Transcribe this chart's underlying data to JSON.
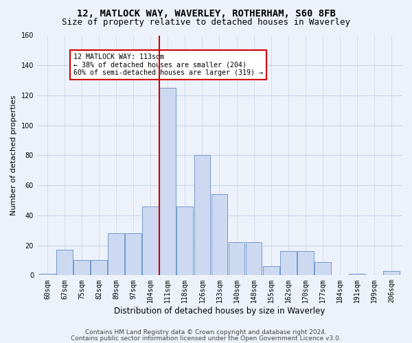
{
  "title1": "12, MATLOCK WAY, WAVERLEY, ROTHERHAM, S60 8FB",
  "title2": "Size of property relative to detached houses in Waverley",
  "xlabel": "Distribution of detached houses by size in Waverley",
  "ylabel": "Number of detached properties",
  "bar_labels": [
    "60sqm",
    "67sqm",
    "75sqm",
    "82sqm",
    "89sqm",
    "97sqm",
    "104sqm",
    "111sqm",
    "118sqm",
    "126sqm",
    "133sqm",
    "140sqm",
    "148sqm",
    "155sqm",
    "162sqm",
    "170sqm",
    "177sqm",
    "184sqm",
    "191sqm",
    "199sqm",
    "206sqm"
  ],
  "bar_heights": [
    1,
    17,
    10,
    10,
    28,
    28,
    46,
    125,
    46,
    80,
    54,
    22,
    22,
    6,
    16,
    16,
    9,
    0,
    1,
    0,
    3
  ],
  "bar_color": "#ccd9f0",
  "bar_edge_color": "#7399cc",
  "highlight_index": 7,
  "highlight_line_color": "#cc0000",
  "annotation_text": "12 MATLOCK WAY: 113sqm\n← 38% of detached houses are smaller (204)\n60% of semi-detached houses are larger (319) →",
  "annotation_box_color": "#ffffff",
  "annotation_border_color": "#cc0000",
  "ylim": [
    0,
    160
  ],
  "yticks": [
    0,
    20,
    40,
    60,
    80,
    100,
    120,
    140,
    160
  ],
  "footer1": "Contains HM Land Registry data © Crown copyright and database right 2024.",
  "footer2": "Contains public sector information licensed under the Open Government Licence v3.0.",
  "bg_color": "#edf2fa",
  "grid_color": "#c8d4e8",
  "title1_fontsize": 10,
  "title2_fontsize": 9,
  "tick_fontsize": 7,
  "ylabel_fontsize": 8,
  "xlabel_fontsize": 8.5,
  "footer_fontsize": 6.5
}
